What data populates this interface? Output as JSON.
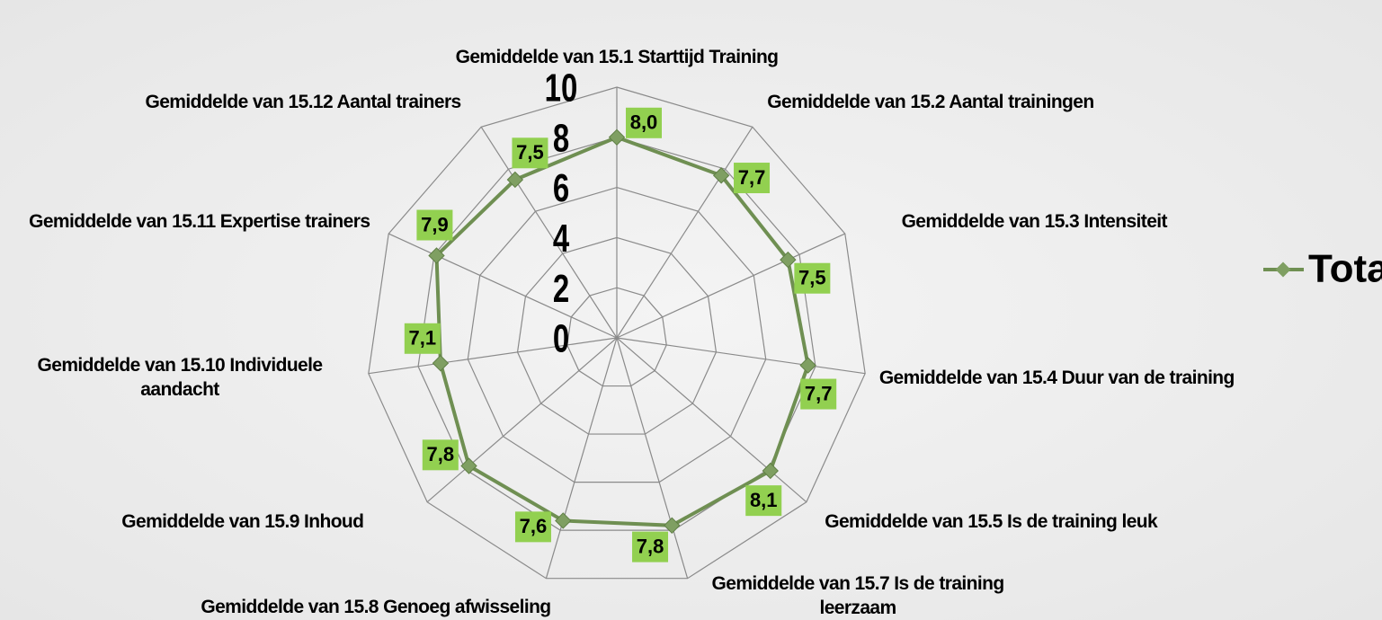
{
  "chart_data": {
    "type": "radar",
    "categories": [
      "Gemiddelde van 15.1 Starttijd Training",
      "Gemiddelde van 15.2 Aantal trainingen",
      "Gemiddelde van 15.3 Intensiteit",
      "Gemiddelde van 15.4 Duur van de training",
      "Gemiddelde van 15.5 Is de training leuk",
      "Gemiddelde van 15.7 Is de training leerzaam",
      "Gemiddelde van 15.8 Genoeg afwisseling",
      "Gemiddelde van 15.9 Inhoud",
      "Gemiddelde van 15.10 Individuele aandacht",
      "Gemiddelde van 15.11 Expertise trainers",
      "Gemiddelde van 15.12 Aantal trainers"
    ],
    "series": [
      {
        "name": "Totaal",
        "color": "#6f8f52",
        "values": [
          8.0,
          7.7,
          7.5,
          7.7,
          8.1,
          7.8,
          7.6,
          7.8,
          7.1,
          7.9,
          7.5
        ],
        "value_labels": [
          "8,0",
          "7,7",
          "7,5",
          "7,7",
          "8,1",
          "7,8",
          "7,6",
          "7,8",
          "7,1",
          "7,9",
          "7,5"
        ]
      }
    ],
    "ylim": [
      0,
      10
    ],
    "yticks": [
      0,
      2,
      4,
      6,
      8,
      10
    ],
    "grid": true,
    "legend": "right"
  }
}
